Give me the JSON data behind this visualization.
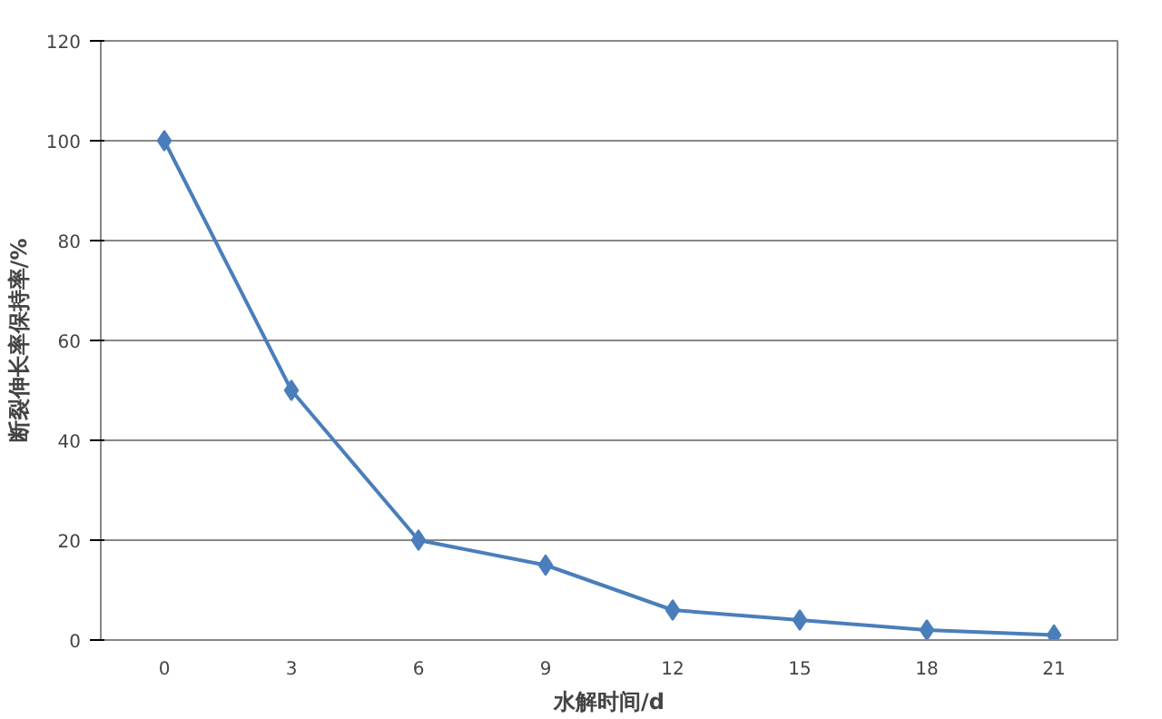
{
  "chart_data": {
    "type": "line",
    "xlabel": "水解时间/d",
    "ylabel": "断裂伸长率保持率/%",
    "categories": [
      "0",
      "3",
      "6",
      "9",
      "12",
      "15",
      "18",
      "21"
    ],
    "series": [
      {
        "color": "#4a7ebb",
        "values": [
          100,
          50,
          20,
          15,
          6,
          4,
          2,
          1
        ]
      }
    ],
    "ylim": [
      0,
      120
    ],
    "yticks": [
      0,
      20,
      40,
      60,
      80,
      100,
      120
    ],
    "grid": "y",
    "marker": "diamond",
    "line_style": "solid"
  }
}
